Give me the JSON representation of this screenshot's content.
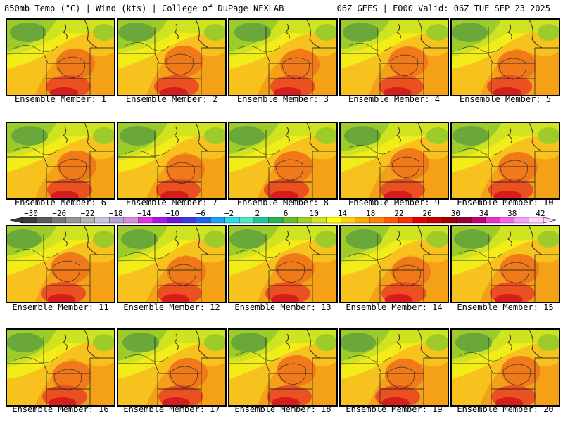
{
  "header": {
    "left": "850mb Temp (°C) | Wind (kts) | College of DuPage NEXLAB",
    "right": "06Z GEFS | F000 Valid: 06Z TUE SEP 23 2025"
  },
  "panels": [
    {
      "label": "Ensemble Member: 1",
      "member": 1
    },
    {
      "label": "Ensemble Member: 2",
      "member": 2
    },
    {
      "label": "Ensemble Member: 3",
      "member": 3
    },
    {
      "label": "Ensemble Member: 4",
      "member": 4
    },
    {
      "label": "Ensemble Member: 5",
      "member": 5
    },
    {
      "label": "Ensemble Member: 6",
      "member": 6
    },
    {
      "label": "Ensemble Member: 7",
      "member": 7
    },
    {
      "label": "Ensemble Member: 8",
      "member": 8
    },
    {
      "label": "Ensemble Member: 9",
      "member": 9
    },
    {
      "label": "Ensemble Member: 10",
      "member": 10
    },
    {
      "label": "Ensemble Member: 11",
      "member": 11
    },
    {
      "label": "Ensemble Member: 12",
      "member": 12
    },
    {
      "label": "Ensemble Member: 13",
      "member": 13
    },
    {
      "label": "Ensemble Member: 14",
      "member": 14
    },
    {
      "label": "Ensemble Member: 15",
      "member": 15
    },
    {
      "label": "Ensemble Member: 16",
      "member": 16
    },
    {
      "label": "Ensemble Member: 17",
      "member": 17
    },
    {
      "label": "Ensemble Member: 18",
      "member": 18
    },
    {
      "label": "Ensemble Member: 19",
      "member": 19
    },
    {
      "label": "Ensemble Member: 20",
      "member": 20
    }
  ],
  "colorbar": {
    "unit": "°C",
    "tick_labels": [
      "−30",
      "−26",
      "−22",
      "−18",
      "−14",
      "−10",
      "−6",
      "−2",
      "2",
      "6",
      "10",
      "14",
      "18",
      "22",
      "26",
      "30",
      "34",
      "38",
      "42"
    ],
    "colors": [
      "#3a3a3a",
      "#5a5a5a",
      "#787878",
      "#969696",
      "#b4b4b4",
      "#c8c8dc",
      "#b9a0dc",
      "#dc8cdc",
      "#e632e6",
      "#aa14e6",
      "#6e14dc",
      "#3c3cdc",
      "#1e64f0",
      "#1ea0f0",
      "#28dcf0",
      "#50e6c8",
      "#1ec896",
      "#28b450",
      "#64be28",
      "#a0d21e",
      "#d2e61e",
      "#ffff00",
      "#ffd200",
      "#ffaa00",
      "#ff8200",
      "#ff5a00",
      "#ff2d00",
      "#e60000",
      "#c80000",
      "#a00000",
      "#960032",
      "#c80078",
      "#e632c8",
      "#f064f0",
      "#f8a0f8",
      "#ffd2ff"
    ]
  },
  "map_colors": {
    "green": "#6aa83a",
    "light_green": "#9dcc2a",
    "yellow_green": "#cfe320",
    "yellow": "#f2ec18",
    "light_orange": "#f7c21e",
    "orange": "#f4a118",
    "dark_orange": "#f07a1a",
    "red_orange": "#ea5020",
    "red": "#d61c1c"
  }
}
